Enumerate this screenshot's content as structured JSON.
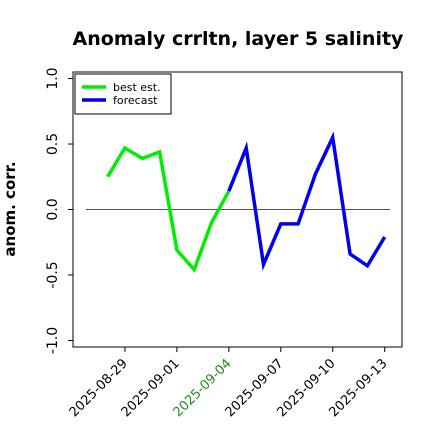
{
  "chart_data": {
    "type": "line",
    "title": "Anomaly crrltn, layer 5 salinity",
    "ylabel": "anom. corr.",
    "xlabel": "",
    "ylim": [
      -1.05,
      1.05
    ],
    "yticks": [
      "-1.0",
      "-0.5",
      "0.0",
      "0.5",
      "1.0"
    ],
    "ytick_values": [
      -1.0,
      -0.5,
      0.0,
      0.5,
      1.0
    ],
    "x": [
      "2025-08-28",
      "2025-08-29",
      "2025-08-30",
      "2025-08-31",
      "2025-09-01",
      "2025-09-02",
      "2025-09-03",
      "2025-09-04",
      "2025-09-05",
      "2025-09-06",
      "2025-09-07",
      "2025-09-08",
      "2025-09-09",
      "2025-09-10",
      "2025-09-11",
      "2025-09-12",
      "2025-09-13"
    ],
    "xticks": [
      {
        "label": "2025-08-29",
        "color": "#000000"
      },
      {
        "label": "2025-09-01",
        "color": "#000000"
      },
      {
        "label": "2025-09-04",
        "color": "#228B22"
      },
      {
        "label": "2025-09-07",
        "color": "#000000"
      },
      {
        "label": "2025-09-10",
        "color": "#000000"
      },
      {
        "label": "2025-09-13",
        "color": "#000000"
      }
    ],
    "xlim": [
      "2025-08-26",
      "2025-09-14"
    ],
    "zero_line": 0.0,
    "grid": false,
    "legend_placement": "top-left",
    "series": [
      {
        "name": "best est.",
        "color": "#00ee00",
        "x": [
          "2025-08-28",
          "2025-08-29",
          "2025-08-30",
          "2025-08-31",
          "2025-09-01",
          "2025-09-02",
          "2025-09-03",
          "2025-09-04"
        ],
        "values": [
          0.25,
          0.47,
          0.39,
          0.44,
          -0.31,
          -0.46,
          -0.1,
          0.14
        ]
      },
      {
        "name": "forecast",
        "color": "#0000ee",
        "x": [
          "2025-09-04",
          "2025-09-05",
          "2025-09-06",
          "2025-09-07",
          "2025-09-08",
          "2025-09-09",
          "2025-09-10",
          "2025-09-11",
          "2025-09-12",
          "2025-09-13"
        ],
        "values": [
          0.14,
          0.47,
          -0.42,
          -0.11,
          -0.11,
          0.27,
          0.55,
          -0.34,
          -0.43,
          -0.21
        ]
      }
    ]
  }
}
